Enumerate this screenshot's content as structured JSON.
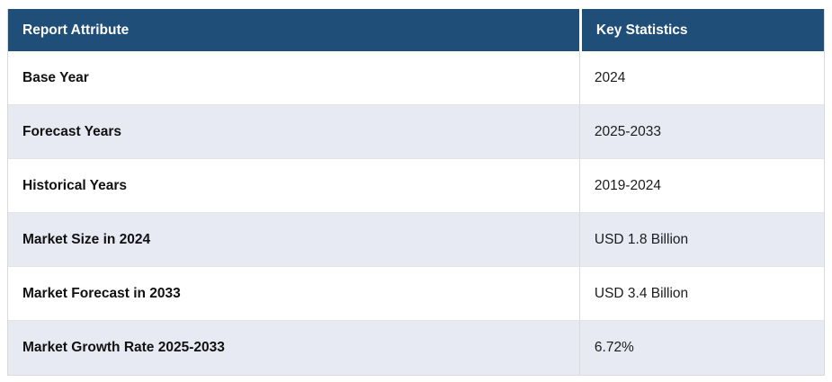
{
  "chart_data": {
    "type": "table",
    "title": "",
    "columns": [
      "Report Attribute",
      "Key Statistics"
    ],
    "rows": [
      [
        "Base Year",
        "2024"
      ],
      [
        "Forecast Years",
        "2025-2033"
      ],
      [
        "Historical Years",
        "2019-2024"
      ],
      [
        "Market Size in 2024",
        "USD 1.8 Billion"
      ],
      [
        "Market Forecast in 2033",
        "USD 3.4 Billion"
      ],
      [
        "Market Growth Rate 2025-2033",
        "6.72%"
      ]
    ]
  },
  "table": {
    "headers": [
      {
        "label": "Report Attribute"
      },
      {
        "label": "Key Statistics"
      }
    ],
    "rows": [
      {
        "attribute": "Base Year",
        "value": "2024"
      },
      {
        "attribute": "Forecast Years",
        "value": "2025-2033"
      },
      {
        "attribute": "Historical Years",
        "value": "2019-2024"
      },
      {
        "attribute": "Market Size in 2024",
        "value": "USD 1.8 Billion"
      },
      {
        "attribute": "Market Forecast in 2033",
        "value": "USD 3.4 Billion"
      },
      {
        "attribute": "Market Growth Rate 2025-2033",
        "value": "6.72%"
      }
    ]
  },
  "theme": {
    "header_bg": "#1f4e79",
    "header_text": "#ffffff",
    "row_bg": "#ffffff",
    "row_alt_bg": "#e7e9f3",
    "border": "#d9d9d9",
    "row_border": "#e3e3e8",
    "text": "#1c1c1c"
  }
}
